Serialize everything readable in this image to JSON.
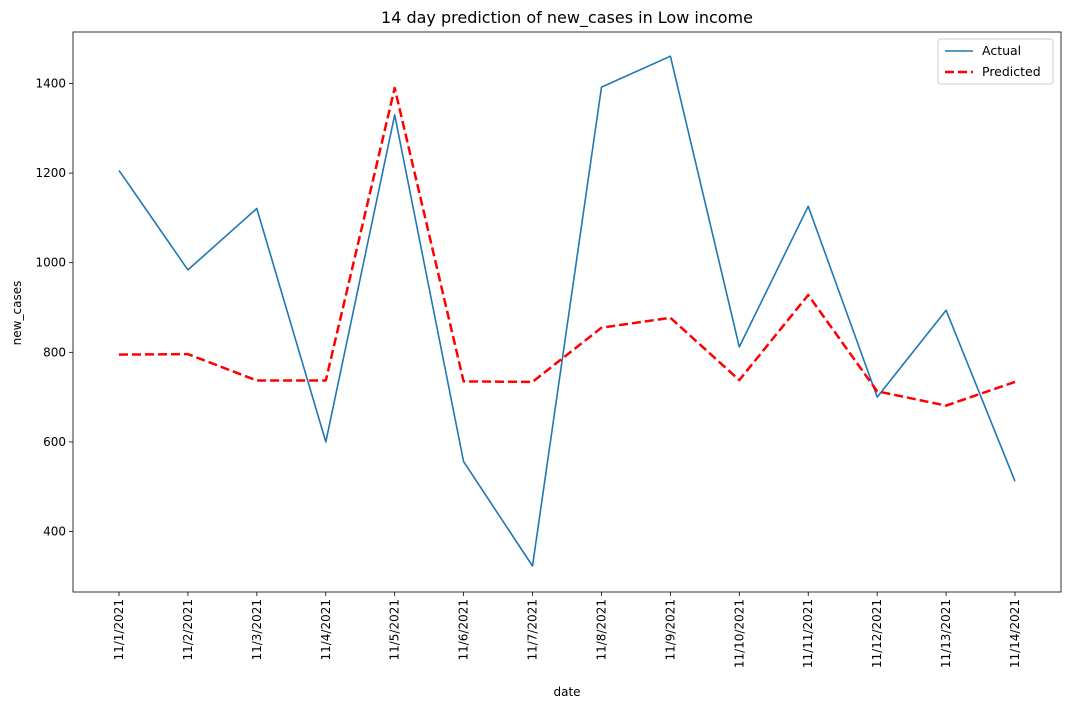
{
  "chart_data": {
    "type": "line",
    "title": "14 day prediction of new_cases in Low income",
    "xlabel": "date",
    "ylabel": "new_cases",
    "categories": [
      "11/1/2021",
      "11/2/2021",
      "11/3/2021",
      "11/4/2021",
      "11/5/2021",
      "11/6/2021",
      "11/7/2021",
      "11/8/2021",
      "11/9/2021",
      "11/10/2021",
      "11/11/2021",
      "11/12/2021",
      "11/13/2021",
      "11/14/2021"
    ],
    "ylim": [
      265,
      1515
    ],
    "yticks": [
      400,
      600,
      800,
      1000,
      1200,
      1400
    ],
    "grid": false,
    "legend_position": "top-right",
    "series": [
      {
        "name": "Actual",
        "color": "#1f77b4",
        "style": "solid",
        "values": [
          1206,
          984,
          1121,
          600,
          1330,
          556,
          323,
          1392,
          1461,
          812,
          1126,
          700,
          894,
          512
        ]
      },
      {
        "name": "Predicted",
        "color": "#ff0000",
        "style": "dashed",
        "values": [
          795,
          796,
          737,
          737,
          1390,
          735,
          734,
          855,
          877,
          738,
          928,
          713,
          681,
          734
        ]
      }
    ]
  }
}
